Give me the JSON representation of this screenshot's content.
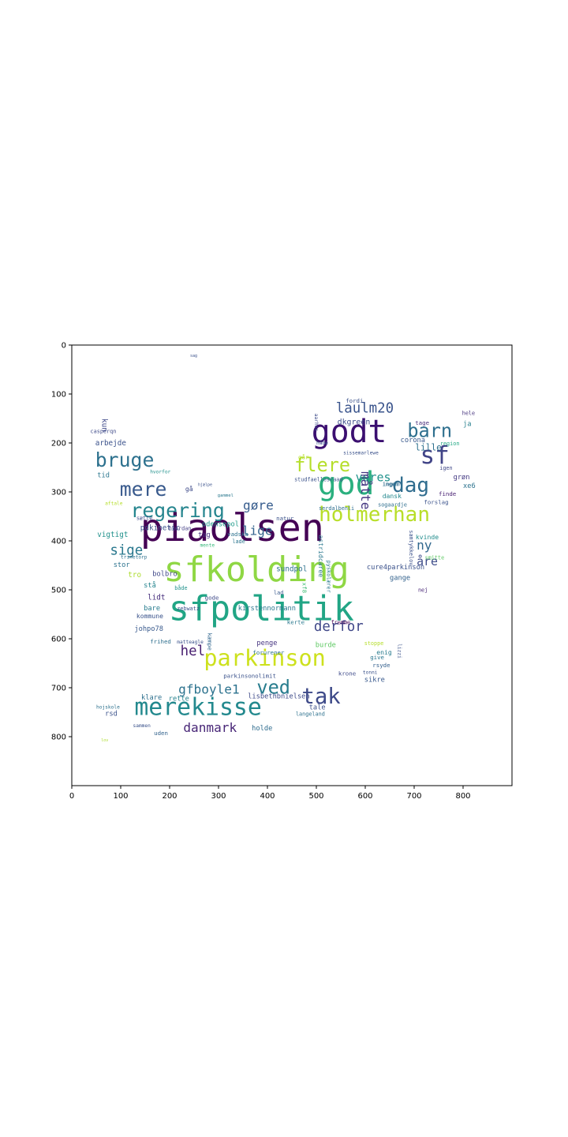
{
  "chart_data": {
    "type": "wordcloud",
    "xlim": [
      0,
      900
    ],
    "ylim": [
      900,
      0
    ],
    "x_ticks": [
      0,
      100,
      200,
      300,
      400,
      500,
      600,
      700,
      800
    ],
    "y_ticks": [
      0,
      100,
      200,
      300,
      400,
      500,
      600,
      700,
      800
    ],
    "colormap": "viridis",
    "background": "#ffffff",
    "words": [
      {
        "text": "piaolsen",
        "x": 140,
        "y": 400,
        "size": 78,
        "color": "#440154",
        "rotate": 0
      },
      {
        "text": "sfkolding",
        "x": 188,
        "y": 482,
        "size": 70,
        "color": "#8fd744",
        "rotate": 0
      },
      {
        "text": "sfpolitik",
        "x": 198,
        "y": 562,
        "size": 70,
        "color": "#21a585",
        "rotate": 0
      },
      {
        "text": "godt",
        "x": 490,
        "y": 198,
        "size": 64,
        "color": "#3b0f70",
        "rotate": 0
      },
      {
        "text": "god",
        "x": 503,
        "y": 305,
        "size": 64,
        "color": "#2bb07f",
        "rotate": 0
      },
      {
        "text": "merekisse",
        "x": 128,
        "y": 756,
        "size": 48,
        "color": "#23898e",
        "rotate": 0
      },
      {
        "text": "parkinson",
        "x": 270,
        "y": 655,
        "size": 46,
        "color": "#cde11d",
        "rotate": 0
      },
      {
        "text": "sf",
        "x": 712,
        "y": 242,
        "size": 50,
        "color": "#414487",
        "rotate": 0
      },
      {
        "text": "tak",
        "x": 470,
        "y": 732,
        "size": 44,
        "color": "#3e4a89",
        "rotate": 0
      },
      {
        "text": "holmerhan",
        "x": 505,
        "y": 360,
        "size": 42,
        "color": "#b8de29",
        "rotate": 0
      },
      {
        "text": "dag",
        "x": 655,
        "y": 300,
        "size": 42,
        "color": "#2f6c8e",
        "rotate": 0
      },
      {
        "text": "barn",
        "x": 686,
        "y": 188,
        "size": 38,
        "color": "#2e6f8e",
        "rotate": 0
      },
      {
        "text": "mere",
        "x": 98,
        "y": 308,
        "size": 40,
        "color": "#38598c",
        "rotate": 0
      },
      {
        "text": "regering",
        "x": 120,
        "y": 352,
        "size": 40,
        "color": "#25858e",
        "rotate": 0
      },
      {
        "text": "bruge",
        "x": 48,
        "y": 248,
        "size": 40,
        "color": "#2d718e",
        "rotate": 0
      },
      {
        "text": "flere",
        "x": 455,
        "y": 258,
        "size": 38,
        "color": "#b5de2b",
        "rotate": 0
      },
      {
        "text": "ved",
        "x": 378,
        "y": 712,
        "size": 38,
        "color": "#287d8e",
        "rotate": 0
      },
      {
        "text": "gfboyle1",
        "x": 218,
        "y": 712,
        "size": 26,
        "color": "#2c728e",
        "rotate": 0
      },
      {
        "text": "laulm20",
        "x": 540,
        "y": 138,
        "size": 28,
        "color": "#3a548c",
        "rotate": 0
      },
      {
        "text": "derfor",
        "x": 495,
        "y": 584,
        "size": 28,
        "color": "#3f4788",
        "rotate": 0
      },
      {
        "text": "lige",
        "x": 348,
        "y": 388,
        "size": 26,
        "color": "#33638d",
        "rotate": 0
      },
      {
        "text": "gøre",
        "x": 350,
        "y": 336,
        "size": 26,
        "color": "#365c8d",
        "rotate": 0
      },
      {
        "text": "sige",
        "x": 78,
        "y": 428,
        "size": 28,
        "color": "#2a788e",
        "rotate": 0
      },
      {
        "text": "vores",
        "x": 580,
        "y": 278,
        "size": 24,
        "color": "#20928c",
        "rotate": 0
      },
      {
        "text": "hel",
        "x": 222,
        "y": 634,
        "size": 28,
        "color": "#481f70",
        "rotate": 0
      },
      {
        "text": "danmark",
        "x": 228,
        "y": 790,
        "size": 26,
        "color": "#482677",
        "rotate": 0
      },
      {
        "text": "ny",
        "x": 705,
        "y": 418,
        "size": 26,
        "color": "#31688e",
        "rotate": 0
      },
      {
        "text": "åre",
        "x": 705,
        "y": 450,
        "size": 24,
        "color": "#3e4c8a",
        "rotate": 0
      },
      {
        "text": "måtte",
        "x": 592,
        "y": 258,
        "size": 26,
        "color": "#453781",
        "rotate": 90
      },
      {
        "text": "lille",
        "x": 702,
        "y": 215,
        "size": 18,
        "color": "#2d708e",
        "rotate": 0
      },
      {
        "text": "dkgreen",
        "x": 543,
        "y": 162,
        "size": 16,
        "color": "#3d4e8a",
        "rotate": 0
      },
      {
        "text": "corona",
        "x": 672,
        "y": 198,
        "size": 14,
        "color": "#38588c",
        "rotate": 0
      },
      {
        "text": "tage",
        "x": 702,
        "y": 163,
        "size": 12,
        "color": "#472d7b",
        "rotate": 0
      },
      {
        "text": "ja",
        "x": 800,
        "y": 165,
        "size": 14,
        "color": "#27808e",
        "rotate": 0
      },
      {
        "text": "hele",
        "x": 798,
        "y": 143,
        "size": 11,
        "color": "#46337e",
        "rotate": 0
      },
      {
        "text": "fordi",
        "x": 560,
        "y": 118,
        "size": 12,
        "color": "#3b528b",
        "rotate": 0
      },
      {
        "text": "region",
        "x": 753,
        "y": 205,
        "size": 11,
        "color": "#22a884",
        "rotate": 0
      },
      {
        "text": "grøn",
        "x": 780,
        "y": 274,
        "size": 14,
        "color": "#443a83",
        "rotate": 0
      },
      {
        "text": "xe6",
        "x": 800,
        "y": 292,
        "size": 14,
        "color": "#2c738e",
        "rotate": 0
      },
      {
        "text": "igen",
        "x": 752,
        "y": 255,
        "size": 11,
        "color": "#3f4788",
        "rotate": 0
      },
      {
        "text": "finde",
        "x": 750,
        "y": 308,
        "size": 12,
        "color": "#482173",
        "rotate": 0
      },
      {
        "text": "forslag",
        "x": 720,
        "y": 325,
        "size": 12,
        "color": "#3b528b",
        "rotate": 0
      },
      {
        "text": "sogaardje",
        "x": 626,
        "y": 330,
        "size": 11,
        "color": "#2e6e8e",
        "rotate": 0
      },
      {
        "text": "dansk",
        "x": 635,
        "y": 313,
        "size": 13,
        "color": "#23888e",
        "rotate": 0
      },
      {
        "text": "ingen",
        "x": 635,
        "y": 288,
        "size": 12,
        "color": "#33628d",
        "rotate": 0
      },
      {
        "text": "kvinde",
        "x": 703,
        "y": 397,
        "size": 13,
        "color": "#228d8d",
        "rotate": 0
      },
      {
        "text": "samtykkelov",
        "x": 690,
        "y": 378,
        "size": 11,
        "color": "#3b518b",
        "rotate": 90
      },
      {
        "text": "smitte",
        "x": 722,
        "y": 438,
        "size": 11,
        "color": "#5ec962",
        "rotate": 0
      },
      {
        "text": "cure4parkinson",
        "x": 603,
        "y": 458,
        "size": 14,
        "color": "#3b528b",
        "rotate": 0
      },
      {
        "text": "gange",
        "x": 650,
        "y": 480,
        "size": 14,
        "color": "#33628d",
        "rotate": 0
      },
      {
        "text": "nej",
        "x": 708,
        "y": 504,
        "size": 11,
        "color": "#482677",
        "rotate": 0
      },
      {
        "text": "sundpol",
        "x": 418,
        "y": 462,
        "size": 15,
        "color": "#2d718e",
        "rotate": 0
      },
      {
        "text": "kirstennormann",
        "x": 340,
        "y": 542,
        "size": 14,
        "color": "#2a788e",
        "rotate": 0
      },
      {
        "text": "lisbethbnielsen",
        "x": 360,
        "y": 722,
        "size": 14,
        "color": "#3e4a89",
        "rotate": 0
      },
      {
        "text": "tale",
        "x": 485,
        "y": 744,
        "size": 14,
        "color": "#3c4f8a",
        "rotate": 0
      },
      {
        "text": "holde",
        "x": 368,
        "y": 787,
        "size": 14,
        "color": "#2f6c8e",
        "rotate": 0
      },
      {
        "text": "sikre",
        "x": 598,
        "y": 688,
        "size": 14,
        "color": "#38588c",
        "rotate": 0
      },
      {
        "text": "enig",
        "x": 623,
        "y": 632,
        "size": 13,
        "color": "#297b8e",
        "rotate": 0
      },
      {
        "text": "burde",
        "x": 498,
        "y": 617,
        "size": 14,
        "color": "#5ec962",
        "rotate": 0
      },
      {
        "text": "penge",
        "x": 378,
        "y": 613,
        "size": 14,
        "color": "#463480",
        "rotate": 0
      },
      {
        "text": "forurener",
        "x": 370,
        "y": 632,
        "size": 12,
        "color": "#2c728e",
        "rotate": 0
      },
      {
        "text": "parkinsonolimit",
        "x": 310,
        "y": 680,
        "size": 12,
        "color": "#3b528b",
        "rotate": 0
      },
      {
        "text": "vigtigt",
        "x": 52,
        "y": 392,
        "size": 15,
        "color": "#21918c",
        "rotate": 0
      },
      {
        "text": "pdkinetic",
        "x": 140,
        "y": 378,
        "size": 15,
        "color": "#3b528b",
        "rotate": 0
      },
      {
        "text": "odensepol",
        "x": 266,
        "y": 370,
        "size": 14,
        "color": "#1e9b8a",
        "rotate": 0
      },
      {
        "text": "tag",
        "x": 258,
        "y": 392,
        "size": 14,
        "color": "#46327e",
        "rotate": 0
      },
      {
        "text": "stor",
        "x": 85,
        "y": 453,
        "size": 14,
        "color": "#2c738e",
        "rotate": 0
      },
      {
        "text": "tro",
        "x": 115,
        "y": 474,
        "size": 15,
        "color": "#addc30",
        "rotate": 0
      },
      {
        "text": "bolbro",
        "x": 165,
        "y": 472,
        "size": 14,
        "color": "#3f4788",
        "rotate": 0
      },
      {
        "text": "stå",
        "x": 147,
        "y": 495,
        "size": 14,
        "color": "#25848e",
        "rotate": 0
      },
      {
        "text": "lidt",
        "x": 155,
        "y": 520,
        "size": 15,
        "color": "#472f7d",
        "rotate": 0
      },
      {
        "text": "bare",
        "x": 147,
        "y": 542,
        "size": 14,
        "color": "#287c8e",
        "rotate": 0
      },
      {
        "text": "kommune",
        "x": 132,
        "y": 558,
        "size": 13,
        "color": "#3a538b",
        "rotate": 0
      },
      {
        "text": "johpo78",
        "x": 128,
        "y": 584,
        "size": 14,
        "color": "#38598c",
        "rotate": 0
      },
      {
        "text": "klare",
        "x": 142,
        "y": 724,
        "size": 14,
        "color": "#2d708e",
        "rotate": 0
      },
      {
        "text": "rette",
        "x": 198,
        "y": 727,
        "size": 14,
        "color": "#26828e",
        "rotate": 0
      },
      {
        "text": "rsd",
        "x": 68,
        "y": 757,
        "size": 14,
        "color": "#3b528b",
        "rotate": 0
      },
      {
        "text": "uden",
        "x": 168,
        "y": 797,
        "size": 12,
        "color": "#33638d",
        "rotate": 0
      },
      {
        "text": "arbejde",
        "x": 48,
        "y": 205,
        "size": 15,
        "color": "#3b528b",
        "rotate": 0
      },
      {
        "text": "tid",
        "x": 52,
        "y": 270,
        "size": 14,
        "color": "#2a768e",
        "rotate": 0
      },
      {
        "text": "kun",
        "x": 62,
        "y": 150,
        "size": 15,
        "color": "#3e4989",
        "rotate": 90
      },
      {
        "text": "casperqn",
        "x": 38,
        "y": 180,
        "size": 11,
        "color": "#3e4a89",
        "rotate": 0
      },
      {
        "text": "gå",
        "x": 232,
        "y": 298,
        "size": 13,
        "color": "#3e4a89",
        "rotate": 0
      },
      {
        "text": "vadska",
        "x": 318,
        "y": 390,
        "size": 12,
        "color": "#2d718e",
        "rotate": 0
      },
      {
        "text": "lade",
        "x": 328,
        "y": 405,
        "size": 11,
        "color": "#2b758e",
        "rotate": 0
      },
      {
        "text": "mente",
        "x": 262,
        "y": 412,
        "size": 10,
        "color": "#35b779",
        "rotate": 0
      },
      {
        "text": "hvordan",
        "x": 198,
        "y": 378,
        "size": 11,
        "color": "#433e85",
        "rotate": 0
      },
      {
        "text": "sætte",
        "x": 132,
        "y": 357,
        "size": 11,
        "color": "#3e4c8a",
        "rotate": 0
      },
      {
        "text": "gode",
        "x": 272,
        "y": 520,
        "size": 12,
        "color": "#3e4989",
        "rotate": 0
      },
      {
        "text": "zebwatz",
        "x": 215,
        "y": 542,
        "size": 11,
        "color": "#3b528b",
        "rotate": 0
      },
      {
        "text": "både",
        "x": 210,
        "y": 500,
        "size": 11,
        "color": "#20928c",
        "rotate": 0
      },
      {
        "text": "kæmpe",
        "x": 278,
        "y": 588,
        "size": 12,
        "color": "#31678e",
        "rotate": 90
      },
      {
        "text": "frihed",
        "x": 160,
        "y": 610,
        "size": 12,
        "color": "#2e6f8e",
        "rotate": 0
      },
      {
        "text": "matteagle",
        "x": 215,
        "y": 610,
        "size": 10,
        "color": "#3b528b",
        "rotate": 0
      },
      {
        "text": "krone",
        "x": 545,
        "y": 675,
        "size": 12,
        "color": "#3e4a89",
        "rotate": 0
      },
      {
        "text": "rsyde",
        "x": 615,
        "y": 658,
        "size": 12,
        "color": "#34608d",
        "rotate": 0
      },
      {
        "text": "give",
        "x": 610,
        "y": 642,
        "size": 12,
        "color": "#2a768e",
        "rotate": 0
      },
      {
        "text": "langeland",
        "x": 458,
        "y": 757,
        "size": 11,
        "color": "#2d718e",
        "rotate": 0
      },
      {
        "text": "stoppe",
        "x": 598,
        "y": 613,
        "size": 11,
        "color": "#b5de2b",
        "rotate": 0
      },
      {
        "text": "fremme",
        "x": 530,
        "y": 570,
        "size": 11,
        "color": "#440154",
        "rotate": 0
      },
      {
        "text": "kerte",
        "x": 440,
        "y": 570,
        "size": 12,
        "color": "#2a788e",
        "rotate": 0
      },
      {
        "text": "lad",
        "x": 413,
        "y": 510,
        "size": 11,
        "color": "#38598c",
        "rotate": 0
      },
      {
        "text": "natur",
        "x": 418,
        "y": 358,
        "size": 12,
        "color": "#3b528b",
        "rotate": 0
      },
      {
        "text": "serdalbenli",
        "x": 505,
        "y": 337,
        "size": 11,
        "color": "#2e6e8e",
        "rotate": 0
      },
      {
        "text": "studfaellesraad",
        "x": 455,
        "y": 278,
        "size": 11,
        "color": "#3b528b",
        "rotate": 0
      },
      {
        "text": "ingen",
        "x": 635,
        "y": 288,
        "size": 11,
        "color": "#2c738e",
        "rotate": 0
      },
      {
        "text": "trinetorp",
        "x": 100,
        "y": 436,
        "size": 10,
        "color": "#2d718e",
        "rotate": 0
      },
      {
        "text": "lov",
        "x": 60,
        "y": 810,
        "size": 8,
        "color": "#addc30",
        "rotate": 0
      },
      {
        "text": "sag",
        "x": 242,
        "y": 24,
        "size": 8,
        "color": "#3b528b",
        "rotate": 0
      },
      {
        "text": "hojskole",
        "x": 50,
        "y": 743,
        "size": 10,
        "color": "#2d718e",
        "rotate": 0
      },
      {
        "text": "sammen",
        "x": 125,
        "y": 781,
        "size": 10,
        "color": "#3b528b",
        "rotate": 0
      },
      {
        "text": "aftale",
        "x": 68,
        "y": 327,
        "size": 10,
        "color": "#b5de2b",
        "rotate": 0
      },
      {
        "text": "hvorfor",
        "x": 160,
        "y": 262,
        "size": 10,
        "color": "#21918c",
        "rotate": 0
      },
      {
        "text": "gammel",
        "x": 298,
        "y": 310,
        "size": 9,
        "color": "#2a788e",
        "rotate": 0
      },
      {
        "text": "hjælpe",
        "x": 258,
        "y": 288,
        "size": 8,
        "color": "#3b528b",
        "rotate": 0
      },
      {
        "text": "pyskolærer",
        "x": 522,
        "y": 440,
        "size": 11,
        "color": "#2a788e",
        "rotate": 90
      },
      {
        "text": "aarhus",
        "x": 497,
        "y": 140,
        "size": 10,
        "color": "#3e4c8a",
        "rotate": 90
      },
      {
        "text": "håbe",
        "x": 500,
        "y": 203,
        "size": 10,
        "color": "#3b528b",
        "rotate": 0
      },
      {
        "text": "går",
        "x": 463,
        "y": 233,
        "size": 12,
        "color": "#b5de2b",
        "rotate": 0
      },
      {
        "text": "sissemarlewe",
        "x": 555,
        "y": 223,
        "size": 10,
        "color": "#3b528b",
        "rotate": 0
      },
      {
        "text": "astridcaree",
        "x": 505,
        "y": 388,
        "size": 13,
        "color": "#2a788e",
        "rotate": 90
      },
      {
        "text": "xf8",
        "x": 472,
        "y": 485,
        "size": 12,
        "color": "#3fbc73",
        "rotate": 90
      },
      {
        "text": "tonni",
        "x": 595,
        "y": 672,
        "size": 10,
        "color": "#3b528b",
        "rotate": 0
      },
      {
        "text": "lizzi",
        "x": 667,
        "y": 610,
        "size": 10,
        "color": "#3b528b",
        "rotate": 90
      }
    ]
  }
}
